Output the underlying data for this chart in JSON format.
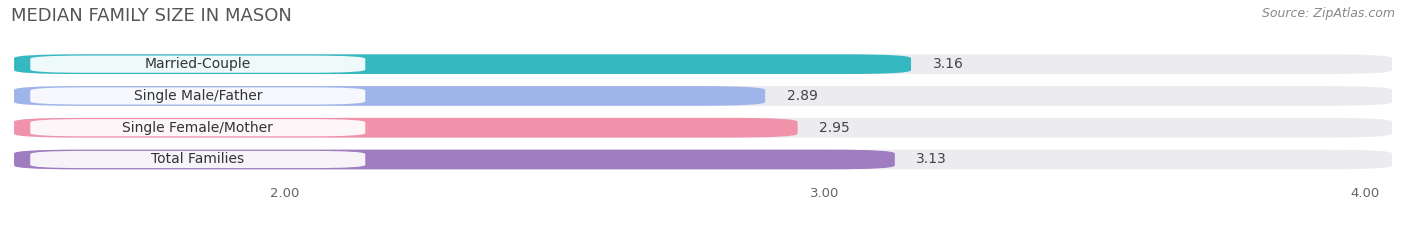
{
  "title": "MEDIAN FAMILY SIZE IN MASON",
  "source": "Source: ZipAtlas.com",
  "categories": [
    "Married-Couple",
    "Single Male/Father",
    "Single Female/Mother",
    "Total Families"
  ],
  "values": [
    3.16,
    2.89,
    2.95,
    3.13
  ],
  "bar_colors": [
    "#35b8c0",
    "#9fb4e8",
    "#f093aa",
    "#a07cc0"
  ],
  "xlim": [
    1.5,
    4.05
  ],
  "xstart": 1.5,
  "xticks": [
    2.0,
    3.0,
    4.0
  ],
  "xtick_labels": [
    "2.00",
    "3.00",
    "4.00"
  ],
  "background_color": "#ffffff",
  "bar_bg_color": "#ebebf0",
  "row_bg_color": "#f5f5f8",
  "title_fontsize": 13,
  "source_fontsize": 9,
  "label_fontsize": 10,
  "value_fontsize": 10
}
